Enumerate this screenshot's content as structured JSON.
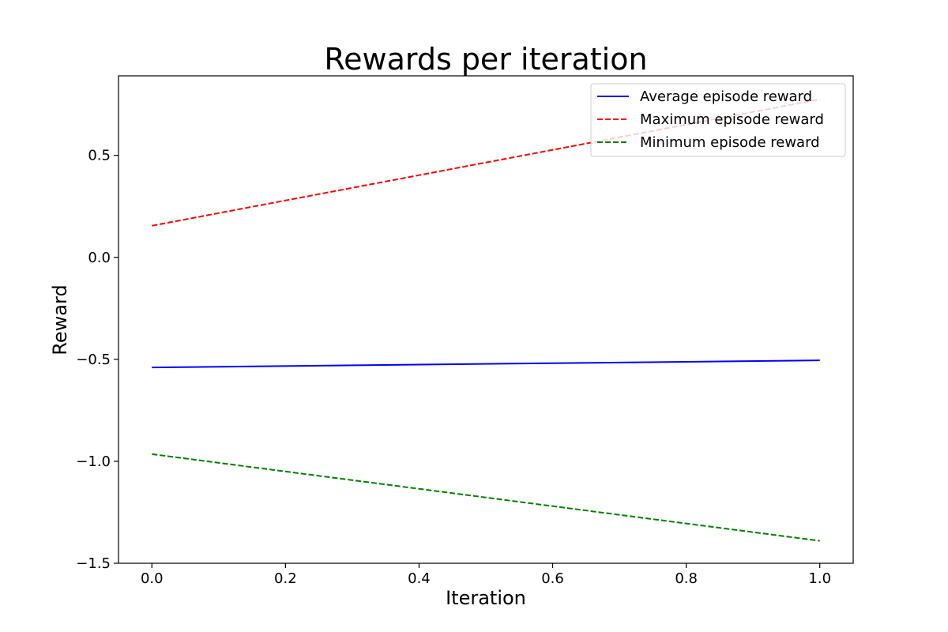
{
  "chart_data": {
    "type": "line",
    "title": "Rewards per iteration",
    "xlabel": "Iteration",
    "ylabel": "Reward",
    "xlim": [
      -0.05,
      1.05
    ],
    "ylim": [
      -1.5,
      0.89
    ],
    "xticks": [
      0.0,
      0.2,
      0.4,
      0.6,
      0.8,
      1.0
    ],
    "xtick_labels": [
      "0.0",
      "0.2",
      "0.4",
      "0.6",
      "0.8",
      "1.0"
    ],
    "yticks": [
      -1.5,
      -1.0,
      -0.5,
      0.0,
      0.5
    ],
    "ytick_labels": [
      "−1.5",
      "−1.0",
      "−0.5",
      "0.0",
      "0.5"
    ],
    "grid": false,
    "legend_position": "upper right",
    "x": [
      0.0,
      1.0
    ],
    "series": [
      {
        "name": "Average episode reward",
        "values": [
          -0.54,
          -0.505
        ],
        "color": "#0000ff",
        "style": "solid"
      },
      {
        "name": "Maximum episode reward",
        "values": [
          0.155,
          0.775
        ],
        "color": "#ff0000",
        "style": "dashed"
      },
      {
        "name": "Minimum episode reward",
        "values": [
          -0.965,
          -1.39
        ],
        "color": "#008000",
        "style": "dashed"
      }
    ]
  }
}
